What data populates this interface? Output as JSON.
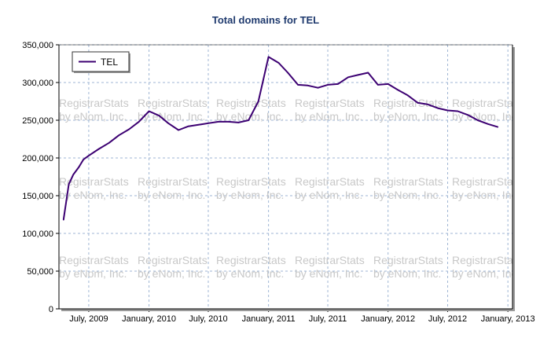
{
  "chart_data": {
    "type": "line",
    "title": "Total domains for TEL",
    "xlabel": "",
    "ylabel": "",
    "ylim": [
      0,
      350000
    ],
    "xlim": [
      "2009-04-01",
      "2013-01-15"
    ],
    "grid": true,
    "legend_position": "top-left",
    "y_ticks": [
      {
        "value": 0,
        "label": "0"
      },
      {
        "value": 50000,
        "label": "50,000"
      },
      {
        "value": 100000,
        "label": "100,000"
      },
      {
        "value": 150000,
        "label": "150,000"
      },
      {
        "value": 200000,
        "label": "200,000"
      },
      {
        "value": 250000,
        "label": "250,000"
      },
      {
        "value": 300000,
        "label": "300,000"
      },
      {
        "value": 350000,
        "label": "350,000"
      }
    ],
    "x_ticks": [
      {
        "value": "2009-07-01",
        "label": "July, 2009"
      },
      {
        "value": "2010-01-01",
        "label": "January, 2010"
      },
      {
        "value": "2010-07-01",
        "label": "July, 2010"
      },
      {
        "value": "2011-01-01",
        "label": "January, 2011"
      },
      {
        "value": "2011-07-01",
        "label": "July, 2011"
      },
      {
        "value": "2012-01-01",
        "label": "January, 2012"
      },
      {
        "value": "2012-07-01",
        "label": "July, 2012"
      },
      {
        "value": "2013-01-01",
        "label": "January, 2013"
      }
    ],
    "watermark": [
      "RegistrarStats",
      "by eNom, Inc."
    ],
    "series": [
      {
        "name": "TEL",
        "color": "#3c0072",
        "points": [
          {
            "x": "2009-04-15",
            "y": 118000
          },
          {
            "x": "2009-05-01",
            "y": 165000
          },
          {
            "x": "2009-05-15",
            "y": 178000
          },
          {
            "x": "2009-06-01",
            "y": 188000
          },
          {
            "x": "2009-06-15",
            "y": 198000
          },
          {
            "x": "2009-07-01",
            "y": 203000
          },
          {
            "x": "2009-08-01",
            "y": 212000
          },
          {
            "x": "2009-09-01",
            "y": 220000
          },
          {
            "x": "2009-10-01",
            "y": 230000
          },
          {
            "x": "2009-11-01",
            "y": 238000
          },
          {
            "x": "2009-12-01",
            "y": 248000
          },
          {
            "x": "2010-01-01",
            "y": 262000
          },
          {
            "x": "2010-02-01",
            "y": 256000
          },
          {
            "x": "2010-03-01",
            "y": 246000
          },
          {
            "x": "2010-04-01",
            "y": 237000
          },
          {
            "x": "2010-05-01",
            "y": 242000
          },
          {
            "x": "2010-06-01",
            "y": 244000
          },
          {
            "x": "2010-07-01",
            "y": 246000
          },
          {
            "x": "2010-08-01",
            "y": 248000
          },
          {
            "x": "2010-09-01",
            "y": 248000
          },
          {
            "x": "2010-10-01",
            "y": 247000
          },
          {
            "x": "2010-11-01",
            "y": 250000
          },
          {
            "x": "2010-12-01",
            "y": 275000
          },
          {
            "x": "2011-01-01",
            "y": 334000
          },
          {
            "x": "2011-02-01",
            "y": 326000
          },
          {
            "x": "2011-03-01",
            "y": 313000
          },
          {
            "x": "2011-04-01",
            "y": 297000
          },
          {
            "x": "2011-05-01",
            "y": 296000
          },
          {
            "x": "2011-06-01",
            "y": 293000
          },
          {
            "x": "2011-07-01",
            "y": 297000
          },
          {
            "x": "2011-08-01",
            "y": 298000
          },
          {
            "x": "2011-09-01",
            "y": 307000
          },
          {
            "x": "2011-10-01",
            "y": 310000
          },
          {
            "x": "2011-11-01",
            "y": 313000
          },
          {
            "x": "2011-12-01",
            "y": 297000
          },
          {
            "x": "2012-01-01",
            "y": 298000
          },
          {
            "x": "2012-02-01",
            "y": 290000
          },
          {
            "x": "2012-03-01",
            "y": 283000
          },
          {
            "x": "2012-04-01",
            "y": 273000
          },
          {
            "x": "2012-05-01",
            "y": 271000
          },
          {
            "x": "2012-06-01",
            "y": 266000
          },
          {
            "x": "2012-07-01",
            "y": 263000
          },
          {
            "x": "2012-08-01",
            "y": 262000
          },
          {
            "x": "2012-09-01",
            "y": 257000
          },
          {
            "x": "2012-10-01",
            "y": 250000
          },
          {
            "x": "2012-11-01",
            "y": 245000
          },
          {
            "x": "2012-12-01",
            "y": 241000
          }
        ]
      }
    ]
  }
}
